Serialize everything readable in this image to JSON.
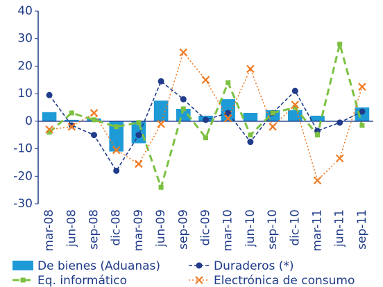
{
  "chart_data": {
    "type": "bar",
    "categories": [
      "mar-08",
      "jun-08",
      "sep-08",
      "dic-08",
      "mar-09",
      "jun-09",
      "sep-09",
      "dic-09",
      "mar-10",
      "jun-10",
      "sep-10",
      "dic-10",
      "mar-11",
      "jun-11",
      "sep-11"
    ],
    "ylim": [
      -30,
      40
    ],
    "yticks": [
      -30,
      -20,
      -10,
      0,
      10,
      20,
      30,
      40
    ],
    "grid": false,
    "series": [
      {
        "name": "De bienes (Aduanas)",
        "type": "bar",
        "color": "#1e9ad6",
        "values": [
          3.3,
          0.5,
          1,
          -11,
          -8,
          7.5,
          4.5,
          2,
          8,
          3,
          4,
          4,
          2,
          0,
          5
        ]
      },
      {
        "name": "Duraderos (*)",
        "type": "line",
        "marker": "dot",
        "dash": "5,3",
        "color": "#1f3b8a",
        "values": [
          9.5,
          -1.5,
          -5,
          -18,
          -5,
          14.5,
          8,
          0.5,
          3,
          -7.5,
          3,
          11,
          -3.5,
          -0.5,
          3.5
        ]
      },
      {
        "name": "Eq. informático",
        "type": "line",
        "marker": "square",
        "dash": "10,6",
        "color": "#7cc142",
        "values": [
          -4,
          3,
          0.5,
          -2,
          -0.5,
          -24,
          4.5,
          -6,
          14,
          -5,
          3,
          5,
          -5,
          28,
          -1.5
        ]
      },
      {
        "name": "Electrónica de consumo",
        "type": "line",
        "marker": "x",
        "dash": "2,3",
        "color": "#f07a22",
        "values": [
          -3,
          -2,
          3,
          -10.5,
          -15.5,
          -1,
          25,
          15,
          1,
          19,
          -2,
          6,
          -21.5,
          -13.5,
          12.5
        ]
      }
    ]
  }
}
